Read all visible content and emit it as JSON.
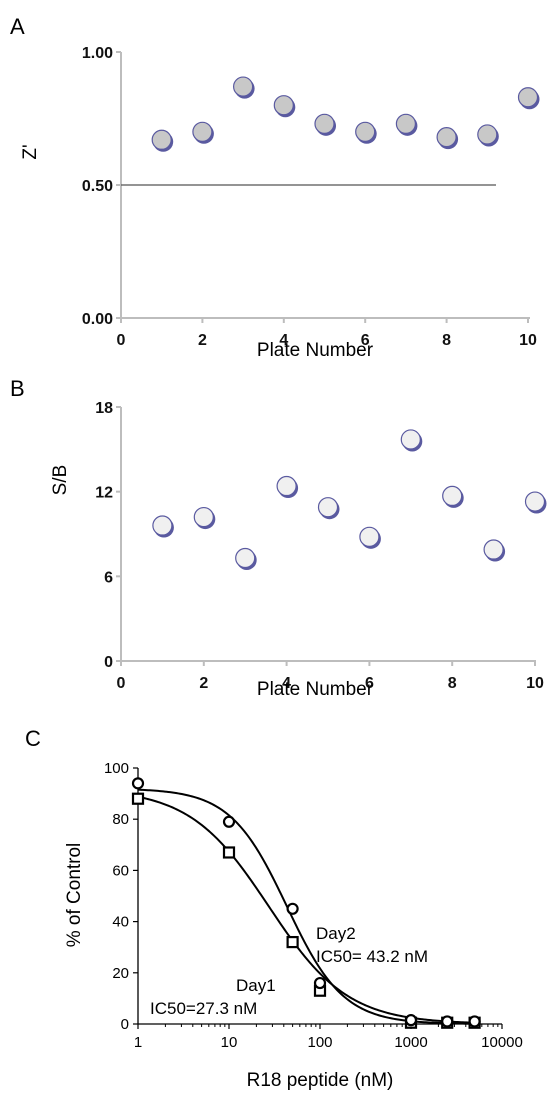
{
  "chart_data": [
    {
      "panel": "A",
      "type": "scatter",
      "xlabel": "Plate Number",
      "ylabel": "Z'",
      "xlim": [
        0,
        10
      ],
      "ylim": [
        0.0,
        1.0
      ],
      "xticks": [
        "0",
        "2",
        "4",
        "6",
        "8",
        "10"
      ],
      "yticks": [
        "0.00",
        "0.50",
        "1.00"
      ],
      "x": [
        1,
        2,
        3,
        4,
        5,
        6,
        7,
        8,
        9,
        10
      ],
      "y": [
        0.67,
        0.7,
        0.87,
        0.8,
        0.73,
        0.7,
        0.73,
        0.68,
        0.69,
        0.83
      ],
      "reference_line": 0.5,
      "marker_fill": "#c8c8c8",
      "marker_edge": "#5a5aa0"
    },
    {
      "panel": "B",
      "type": "scatter",
      "xlabel": "Plate Number",
      "ylabel": "S/B",
      "xlim": [
        0,
        10
      ],
      "ylim": [
        0,
        18
      ],
      "xticks": [
        "0",
        "2",
        "4",
        "6",
        "8",
        "10"
      ],
      "yticks": [
        "0",
        "6",
        "12",
        "18"
      ],
      "x": [
        1,
        2,
        3,
        4,
        5,
        6,
        7,
        8,
        9,
        10
      ],
      "y": [
        9.6,
        10.2,
        7.3,
        12.4,
        10.9,
        8.8,
        15.7,
        11.7,
        7.9,
        11.3
      ],
      "marker_fill": "#f0f0f0",
      "marker_edge": "#5a5aa0"
    },
    {
      "panel": "C",
      "type": "scatter",
      "xlabel": "R18 peptide (nM)",
      "ylabel": "% of Control",
      "xscale": "log",
      "xlim": [
        1,
        10000
      ],
      "ylim": [
        0,
        100
      ],
      "xticks": [
        "1",
        "10",
        "100",
        "1000",
        "10000"
      ],
      "yticks": [
        "0",
        "20",
        "40",
        "60",
        "80",
        "100"
      ],
      "series": [
        {
          "name": "Day1",
          "marker": "square",
          "x": [
            1,
            10,
            50,
            100,
            1000,
            2500,
            5000
          ],
          "y": [
            88,
            67,
            32,
            13,
            0.5,
            0.5,
            0.5
          ],
          "ic50": 27.3,
          "top": 92,
          "hill": 1.0
        },
        {
          "name": "Day2",
          "marker": "circle",
          "x": [
            1,
            10,
            50,
            100,
            1000,
            2500,
            5000
          ],
          "y": [
            94,
            79,
            45,
            16,
            1.5,
            1,
            1
          ],
          "ic50": 43.2,
          "top": 92,
          "hill": 1.4
        }
      ],
      "annotations": [
        "Day2",
        "IC50= 43.2 nM",
        "Day1",
        "IC50=27.3 nM"
      ]
    }
  ]
}
